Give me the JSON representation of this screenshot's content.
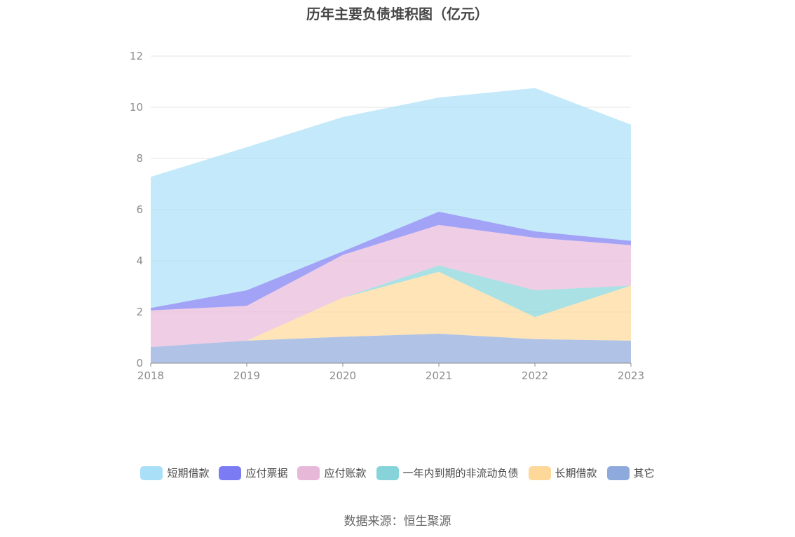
{
  "chart_data": {
    "type": "area",
    "stacked": true,
    "title": "历年主要负债堆积图（亿元）",
    "categories": [
      "2018",
      "2019",
      "2020",
      "2021",
      "2022",
      "2023"
    ],
    "ylim": [
      0,
      12
    ],
    "yticks": [
      0,
      2,
      4,
      6,
      8,
      10,
      12
    ],
    "grid": true,
    "legend_position": "bottom",
    "series": [
      {
        "name": "其它",
        "color": "#8eaadc",
        "values": [
          0.63,
          0.88,
          1.03,
          1.15,
          0.94,
          0.88
        ]
      },
      {
        "name": "长期借款",
        "color": "#fdd899",
        "values": [
          0.0,
          0.0,
          1.53,
          2.42,
          0.86,
          2.15
        ]
      },
      {
        "name": "一年内到期的非流动负债",
        "color": "#86d4d9",
        "values": [
          0.0,
          0.0,
          0.0,
          0.25,
          1.05,
          0.0
        ]
      },
      {
        "name": "应付账款",
        "color": "#e8b8d8",
        "values": [
          1.43,
          1.36,
          1.67,
          1.58,
          2.05,
          1.58
        ]
      },
      {
        "name": "应付票据",
        "color": "#7b7cf4",
        "values": [
          0.1,
          0.61,
          0.14,
          0.52,
          0.25,
          0.17
        ]
      },
      {
        "name": "短期借款",
        "color": "#a9e0f8",
        "values": [
          5.12,
          5.59,
          5.25,
          4.46,
          5.6,
          4.54
        ]
      }
    ],
    "legend_order": [
      "短期借款",
      "应付票据",
      "应付账款",
      "一年内到期的非流动负债",
      "长期借款",
      "其它"
    ]
  },
  "source_text": "数据来源：恒生聚源"
}
